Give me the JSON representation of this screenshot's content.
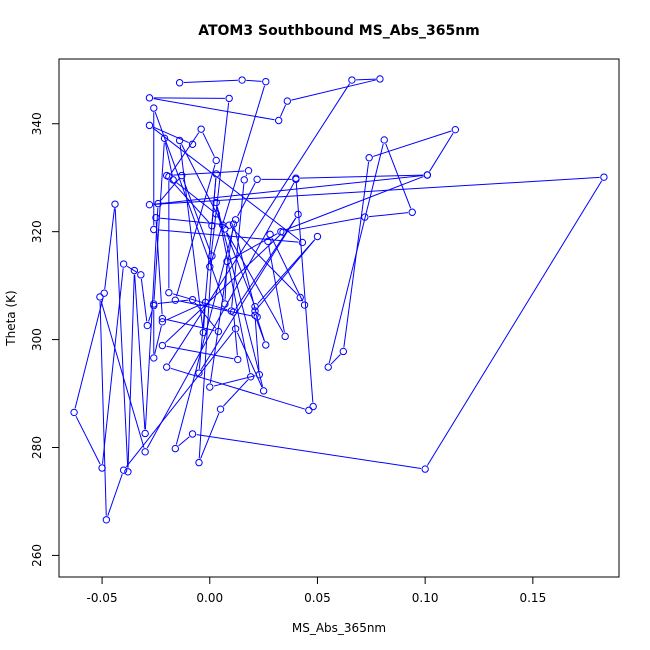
{
  "chart_data": {
    "type": "line",
    "title": "ATOM3 Southbound MS_Abs_365nm",
    "xlabel": "MS_Abs_365nm",
    "ylabel": "Theta (K)",
    "xlim": [
      -0.07,
      0.19
    ],
    "ylim": [
      256,
      352
    ],
    "x_ticks": [
      -0.05,
      0.0,
      0.05,
      0.1,
      0.15
    ],
    "x_tick_labels": [
      "-0.05",
      "0.00",
      "0.05",
      "0.10",
      "0.15"
    ],
    "y_ticks": [
      260,
      280,
      300,
      320,
      340
    ],
    "y_tick_labels": [
      "260",
      "280",
      "300",
      "320",
      "340"
    ],
    "grid": false,
    "legend": "none",
    "series_color": "#0000ff",
    "marker": "open-circle",
    "series": [
      {
        "x": [
          -0.014,
          0.015,
          0.026,
          0.0,
          0.009,
          -0.028,
          0.032,
          0.036,
          0.079,
          0.066,
          -0.02,
          0.046,
          0.048,
          0.04,
          0.101,
          0.114,
          0.074,
          0.062,
          0.055,
          0.081,
          0.094,
          0.072,
          0.034,
          -0.022,
          0.013,
          0.011,
          0.041,
          -0.005,
          0.003,
          0.001,
          -0.02,
          0.018,
          0.016,
          0.01,
          -0.019,
          -0.019,
          -0.004,
          0.003,
          -0.016,
          0.022,
          0.011,
          0.0,
          0.023,
          0.021,
          0.026,
          0.021,
          0.05,
          0.021,
          0.007,
          0.035,
          0.027,
          0.028,
          0.044,
          0.042,
          0.009,
          -0.025,
          -0.022,
          0.004,
          -0.008,
          -0.026,
          -0.021,
          -0.017,
          0.003,
          0.006,
          -0.014,
          -0.003,
          -0.002,
          -0.022,
          -0.026,
          -0.026,
          -0.029,
          -0.032,
          -0.04,
          -0.05,
          -0.063,
          -0.049,
          -0.044,
          -0.038,
          -0.035,
          -0.03,
          -0.024,
          -0.013,
          0.001,
          -0.005,
          0.005,
          0.019,
          0.003,
          0.025,
          0.012,
          -0.04,
          -0.048,
          -0.051,
          -0.03,
          0.04,
          0.022,
          0.012,
          -0.016,
          -0.008,
          0.1,
          0.183,
          -0.028,
          0.101,
          0.033,
          0.008,
          0.007,
          -0.026,
          -0.026,
          0.043,
          -0.028,
          -0.008
        ],
        "y": [
          347.6,
          348.1,
          347.8,
          313.5,
          344.7,
          344.8,
          340.6,
          344.2,
          348.3,
          348.1,
          294.9,
          286.9,
          287.6,
          329.9,
          330.5,
          338.9,
          333.7,
          297.8,
          294.9,
          337.0,
          323.6,
          322.7,
          319.9,
          298.9,
          296.3,
          305.1,
          323.2,
          293.8,
          330.7,
          321.1,
          330.4,
          331.3,
          329.6,
          305.3,
          308.7,
          330.2,
          339.0,
          333.2,
          307.3,
          304.2,
          321.4,
          291.2,
          293.5,
          304.5,
          299.0,
          305.3,
          319.1,
          306.1,
          320.5,
          300.6,
          318.2,
          319.5,
          306.4,
          307.8,
          321.2,
          322.6,
          303.9,
          301.5,
          307.4,
          306.6,
          337.3,
          329.6,
          323.3,
          321.2,
          336.9,
          301.3,
          306.9,
          303.3,
          296.6,
          306.3,
          302.6,
          312.0,
          314.0,
          276.2,
          286.5,
          308.6,
          325.1,
          275.5,
          312.8,
          282.6,
          325.2,
          330.4,
          315.5,
          277.2,
          287.1,
          293.1,
          325.4,
          290.5,
          302.0,
          275.8,
          266.6,
          307.9,
          279.2,
          329.7,
          329.7,
          322.2,
          279.8,
          282.5,
          276.0,
          330.1,
          325.0,
          330.5,
          320.0,
          314.5,
          306.6,
          342.9,
          320.4,
          318.0,
          339.7,
          336.2
        ]
      }
    ]
  }
}
